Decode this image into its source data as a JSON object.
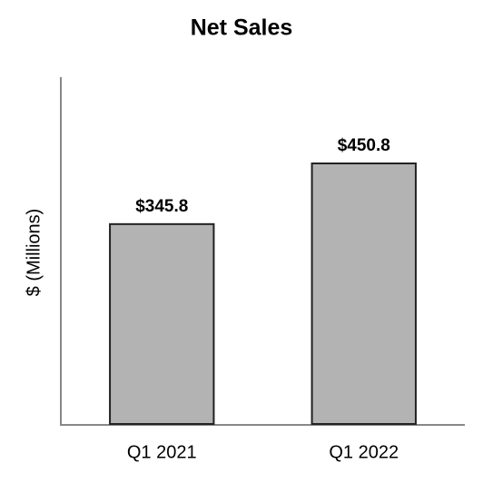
{
  "chart_data": {
    "type": "bar",
    "title": "Net Sales",
    "y_label": "$ (Millions)",
    "categories": [
      "Q1 2021",
      "Q1 2022"
    ],
    "values": [
      345.8,
      450.8
    ],
    "value_labels": [
      "$345.8",
      "$450.8"
    ],
    "color": "#b3b3b3",
    "ylim": [
      0,
      600
    ]
  }
}
